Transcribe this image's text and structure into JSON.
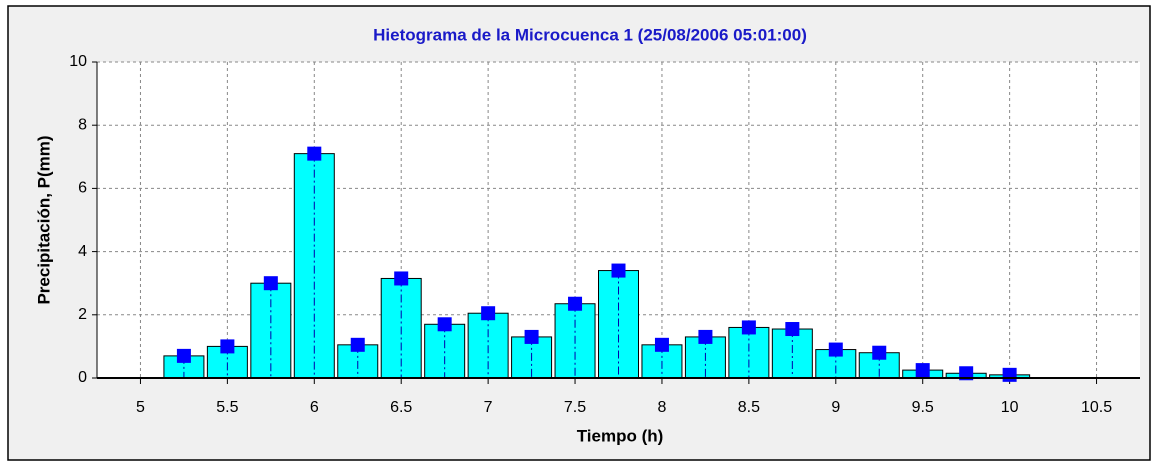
{
  "chart_data": {
    "type": "bar",
    "title": "Hietograma de la Microcuenca 1  (25/08/2006 05:01:00)",
    "x_label": "Tiempo (h)",
    "y_label": "Precipitación, P(mm)",
    "x": [
      5.25,
      5.5,
      5.75,
      6.0,
      6.25,
      6.5,
      6.75,
      7.0,
      7.25,
      7.5,
      7.75,
      8.0,
      8.25,
      8.5,
      8.75,
      9.0,
      9.25,
      9.5,
      9.75,
      10.0
    ],
    "values": [
      0.7,
      1.0,
      3.0,
      7.1,
      1.05,
      3.15,
      1.7,
      2.05,
      1.3,
      2.35,
      3.4,
      1.05,
      1.3,
      1.6,
      1.55,
      0.9,
      0.8,
      0.25,
      0.15,
      0.1
    ],
    "color": "#00ffff",
    "marker_color": "#0000ff",
    "xlim": [
      4.75,
      10.75
    ],
    "xticks": [
      5,
      5.5,
      6,
      6.5,
      7,
      7.5,
      8,
      8.5,
      9,
      9.5,
      10,
      10.5
    ],
    "ylim": [
      0,
      10
    ],
    "yticks": [
      0,
      2,
      4,
      6,
      8,
      10
    ],
    "grid": true
  }
}
